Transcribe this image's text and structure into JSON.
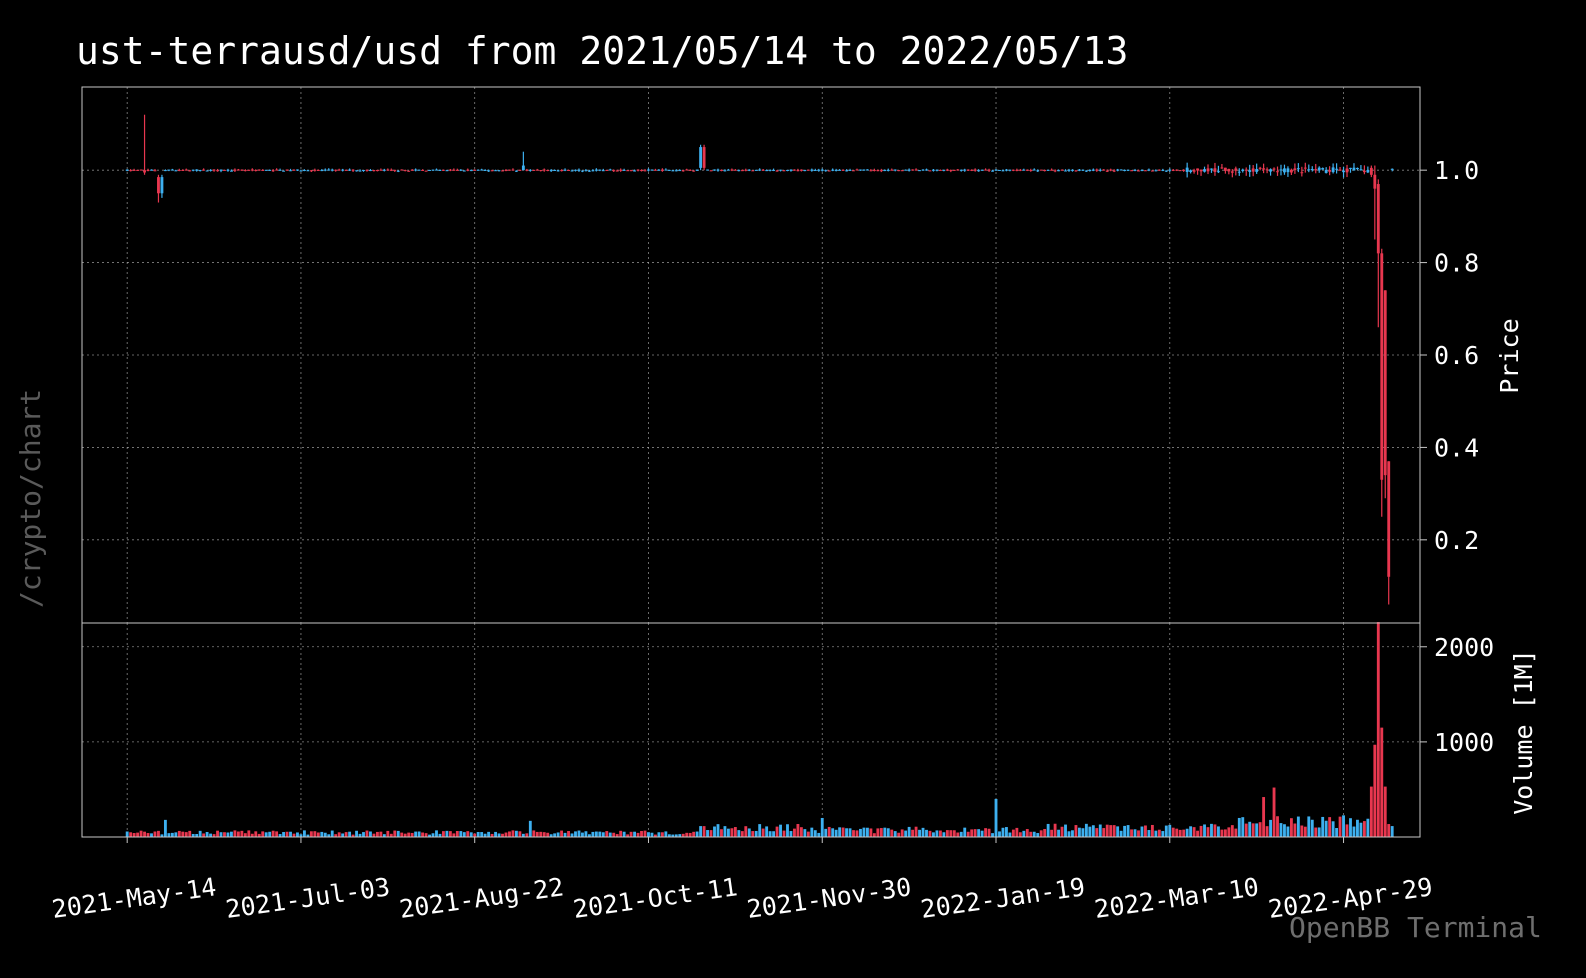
{
  "title": "ust-terrausd/usd from 2021/05/14 to 2022/05/13",
  "watermark": "/crypto/chart",
  "brand": "OpenBB Terminal",
  "colors": {
    "up": "#3db0f0",
    "down": "#e8374f",
    "grid": "#bdbdbd",
    "frame": "#c8c8c8",
    "background": "#000000"
  },
  "chart_data": [
    {
      "type": "candlestick",
      "ylabel": "Price",
      "ylim": [
        0.02,
        1.18
      ],
      "ytick_labels": [
        0.2,
        0.4,
        0.6,
        0.8,
        1.0
      ],
      "xlim": [
        "2021-05-01",
        "2022-05-21"
      ],
      "xtick_labels": [
        "2021-May-14",
        "2021-Jul-03",
        "2021-Aug-22",
        "2021-Oct-11",
        "2021-Nov-30",
        "2022-Jan-19",
        "2022-Mar-10",
        "2022-Apr-29"
      ],
      "grid": true,
      "start_date": "2021-05-14",
      "end_date": "2022-05-13",
      "notable_candles": [
        {
          "date": "2021-05-19",
          "open": 1.0,
          "high": 1.12,
          "low": 0.99,
          "close": 0.995
        },
        {
          "date": "2021-05-23",
          "open": 0.985,
          "high": 0.99,
          "low": 0.93,
          "close": 0.95
        },
        {
          "date": "2021-05-24",
          "open": 0.95,
          "high": 0.99,
          "low": 0.94,
          "close": 0.985
        },
        {
          "date": "2021-09-05",
          "open": 1.0,
          "high": 1.04,
          "low": 1.0,
          "close": 1.01
        },
        {
          "date": "2021-10-26",
          "open": 1.005,
          "high": 1.055,
          "low": 1.0,
          "close": 1.05
        },
        {
          "date": "2021-10-27",
          "open": 1.05,
          "high": 1.055,
          "low": 1.0,
          "close": 1.005
        },
        {
          "date": "2022-05-07",
          "open": 1.005,
          "high": 1.01,
          "low": 0.985,
          "close": 0.99
        },
        {
          "date": "2022-05-08",
          "open": 0.99,
          "high": 1.01,
          "low": 0.85,
          "close": 0.96
        },
        {
          "date": "2022-05-09",
          "open": 0.97,
          "high": 0.98,
          "low": 0.66,
          "close": 0.82
        },
        {
          "date": "2022-05-10",
          "open": 0.82,
          "high": 0.83,
          "low": 0.25,
          "close": 0.33
        },
        {
          "date": "2022-05-11",
          "open": 0.74,
          "high": 0.74,
          "low": 0.29,
          "close": 0.34
        },
        {
          "date": "2022-05-12",
          "open": 0.37,
          "high": 0.37,
          "low": 0.06,
          "close": 0.12
        }
      ]
    },
    {
      "type": "bar",
      "ylabel": "Volume [1M]",
      "ylim": [
        0,
        2250
      ],
      "ytick_labels": [
        1000,
        2000
      ],
      "notable_values": [
        {
          "date": "2021-05-25",
          "value": 180
        },
        {
          "date": "2021-09-07",
          "value": 170
        },
        {
          "date": "2021-11-30",
          "value": 200
        },
        {
          "date": "2022-01-19",
          "value": 400
        },
        {
          "date": "2022-04-06",
          "value": 420
        },
        {
          "date": "2022-04-09",
          "value": 520
        },
        {
          "date": "2022-05-07",
          "value": 530
        },
        {
          "date": "2022-05-08",
          "value": 970
        },
        {
          "date": "2022-05-09",
          "value": 2260
        },
        {
          "date": "2022-05-10",
          "value": 1150
        },
        {
          "date": "2022-05-11",
          "value": 530
        }
      ]
    }
  ]
}
